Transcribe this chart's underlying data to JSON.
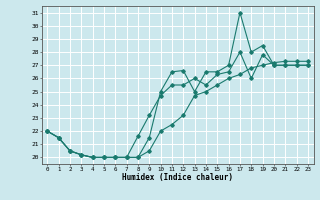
{
  "xlabel": "Humidex (Indice chaleur)",
  "bg_color": "#cce8ed",
  "grid_color": "#ffffff",
  "line_color": "#1a7a6e",
  "xlim": [
    -0.5,
    23.5
  ],
  "ylim": [
    19.5,
    31.5
  ],
  "yticks": [
    20,
    21,
    22,
    23,
    24,
    25,
    26,
    27,
    28,
    29,
    30,
    31
  ],
  "xticks": [
    0,
    1,
    2,
    3,
    4,
    5,
    6,
    7,
    8,
    9,
    10,
    11,
    12,
    13,
    14,
    15,
    16,
    17,
    18,
    19,
    20,
    21,
    22,
    23
  ],
  "lines": [
    [
      22.0,
      21.5,
      20.5,
      20.2,
      20.0,
      20.0,
      20.0,
      20.0,
      20.0,
      21.5,
      25.0,
      26.5,
      26.6,
      25.0,
      26.5,
      26.5,
      27.0,
      31.0,
      28.0,
      28.5,
      27.0,
      27.0,
      27.0,
      27.0
    ],
    [
      22.0,
      21.5,
      20.5,
      20.2,
      20.0,
      20.0,
      20.0,
      20.0,
      21.6,
      23.2,
      24.7,
      25.5,
      25.5,
      26.0,
      25.5,
      26.3,
      26.5,
      28.0,
      26.0,
      27.8,
      27.0,
      27.0,
      27.0,
      27.0
    ],
    [
      22.0,
      21.5,
      20.5,
      20.2,
      20.0,
      20.0,
      20.0,
      20.0,
      20.0,
      20.5,
      22.0,
      22.5,
      23.2,
      24.7,
      25.0,
      25.5,
      26.0,
      26.3,
      26.8,
      27.0,
      27.2,
      27.3,
      27.3,
      27.3
    ]
  ]
}
